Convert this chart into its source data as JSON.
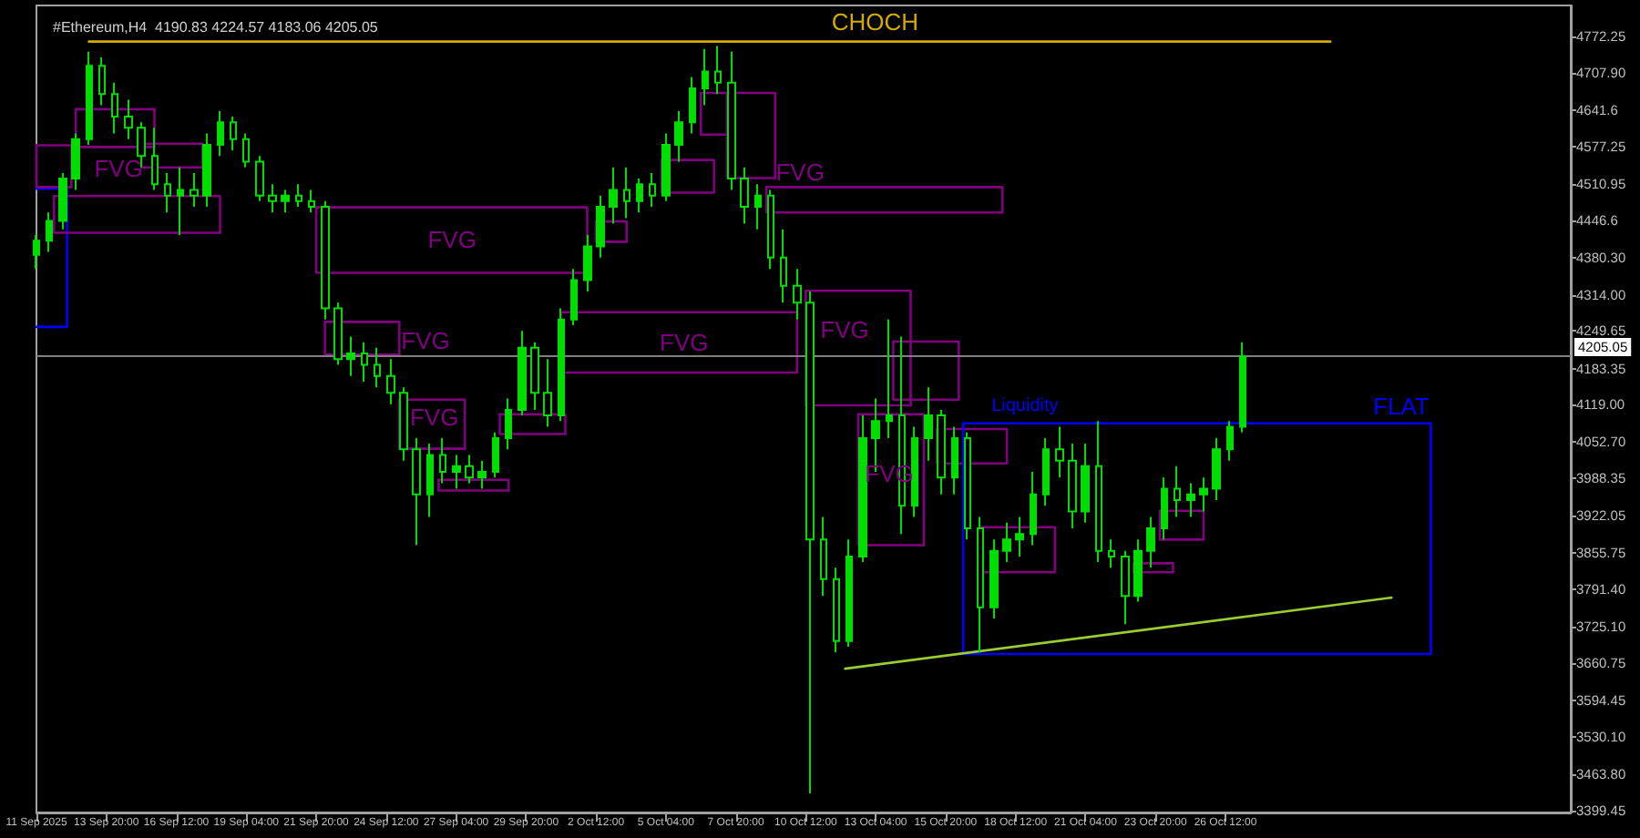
{
  "chart_data": {
    "type": "candlestick",
    "title": "#Ethereum,H4  4190.83 4224.57 4183.06 4205.05",
    "color": "#00dd00",
    "grid": false,
    "x": [
      "2025-09-11T04:00",
      "2025-09-11T16:00",
      "2025-09-12T04:00",
      "2025-09-12T16:00",
      "2025-09-13T04:00",
      "2025-09-13T16:00",
      "2025-09-14T04:00",
      "2025-09-14T16:00",
      "2025-09-15T04:00",
      "2025-09-15T16:00",
      "2025-09-16T04:00",
      "2025-09-16T16:00",
      "2025-09-17T04:00",
      "2025-09-17T16:00",
      "2025-09-18T04:00",
      "2025-09-18T16:00",
      "2025-09-19T04:00",
      "2025-09-19T16:00",
      "2025-09-20T04:00",
      "2025-09-20T16:00",
      "2025-09-21T04:00",
      "2025-09-21T16:00",
      "2025-09-22T04:00",
      "2025-09-22T16:00",
      "2025-09-23T04:00",
      "2025-09-23T16:00",
      "2025-09-24T04:00",
      "2025-09-24T16:00",
      "2025-09-25T04:00",
      "2025-09-25T16:00",
      "2025-09-26T04:00",
      "2025-09-26T16:00",
      "2025-09-27T04:00",
      "2025-09-27T16:00",
      "2025-09-28T04:00",
      "2025-09-28T16:00",
      "2025-09-29T04:00",
      "2025-09-29T16:00",
      "2025-09-30T04:00",
      "2025-09-30T16:00",
      "2025-10-01T04:00",
      "2025-10-01T16:00",
      "2025-10-02T04:00",
      "2025-10-02T16:00",
      "2025-10-03T04:00",
      "2025-10-03T16:00",
      "2025-10-04T04:00",
      "2025-10-04T16:00",
      "2025-10-05T04:00",
      "2025-10-05T16:00",
      "2025-10-06T04:00",
      "2025-10-06T16:00",
      "2025-10-07T04:00",
      "2025-10-07T16:00",
      "2025-10-08T04:00",
      "2025-10-08T16:00",
      "2025-10-09T04:00",
      "2025-10-09T16:00",
      "2025-10-10T04:00",
      "2025-10-10T16:00",
      "2025-10-11T04:00",
      "2025-10-11T16:00",
      "2025-10-12T04:00",
      "2025-10-12T16:00",
      "2025-10-13T04:00",
      "2025-10-13T16:00",
      "2025-10-14T04:00",
      "2025-10-14T16:00",
      "2025-10-15T04:00",
      "2025-10-15T16:00",
      "2025-10-16T04:00",
      "2025-10-16T16:00",
      "2025-10-17T04:00",
      "2025-10-17T16:00",
      "2025-10-18T04:00",
      "2025-10-18T16:00",
      "2025-10-19T04:00",
      "2025-10-19T16:00",
      "2025-10-20T04:00",
      "2025-10-20T16:00",
      "2025-10-21T04:00",
      "2025-10-21T16:00",
      "2025-10-22T04:00",
      "2025-10-22T16:00",
      "2025-10-23T04:00",
      "2025-10-23T16:00",
      "2025-10-24T04:00",
      "2025-10-24T16:00",
      "2025-10-25T04:00",
      "2025-10-25T16:00",
      "2025-10-26T04:00",
      "2025-10-26T16:00",
      "2025-10-27T04:00"
    ],
    "ohlc": [
      [
        4385,
        4420,
        4360,
        4410
      ],
      [
        4410,
        4460,
        4390,
        4445
      ],
      [
        4445,
        4530,
        4430,
        4520
      ],
      [
        4520,
        4600,
        4500,
        4590
      ],
      [
        4590,
        4745,
        4580,
        4720
      ],
      [
        4720,
        4735,
        4650,
        4670
      ],
      [
        4670,
        4690,
        4600,
        4630
      ],
      [
        4630,
        4660,
        4590,
        4610
      ],
      [
        4610,
        4620,
        4540,
        4560
      ],
      [
        4560,
        4610,
        4500,
        4510
      ],
      [
        4510,
        4530,
        4460,
        4490
      ],
      [
        4490,
        4540,
        4420,
        4500
      ],
      [
        4500,
        4530,
        4470,
        4490
      ],
      [
        4490,
        4600,
        4470,
        4580
      ],
      [
        4580,
        4640,
        4560,
        4620
      ],
      [
        4620,
        4630,
        4570,
        4590
      ],
      [
        4590,
        4600,
        4540,
        4550
      ],
      [
        4550,
        4560,
        4480,
        4490
      ],
      [
        4490,
        4510,
        4460,
        4480
      ],
      [
        4480,
        4500,
        4460,
        4490
      ],
      [
        4490,
        4510,
        4470,
        4480
      ],
      [
        4480,
        4500,
        4460,
        4470
      ],
      [
        4470,
        4480,
        4270,
        4290
      ],
      [
        4290,
        4300,
        4190,
        4200
      ],
      [
        4200,
        4240,
        4170,
        4210
      ],
      [
        4210,
        4230,
        4160,
        4190
      ],
      [
        4190,
        4220,
        4150,
        4170
      ],
      [
        4170,
        4200,
        4120,
        4140
      ],
      [
        4140,
        4150,
        4020,
        4040
      ],
      [
        4040,
        4060,
        3870,
        3960
      ],
      [
        3960,
        4050,
        3920,
        4030
      ],
      [
        4030,
        4060,
        3980,
        4000
      ],
      [
        4000,
        4030,
        3970,
        4010
      ],
      [
        4010,
        4030,
        3980,
        3990
      ],
      [
        3990,
        4020,
        3970,
        4000
      ],
      [
        4000,
        4070,
        3990,
        4060
      ],
      [
        4060,
        4130,
        4040,
        4110
      ],
      [
        4110,
        4250,
        4100,
        4220
      ],
      [
        4220,
        4230,
        4110,
        4140
      ],
      [
        4140,
        4200,
        4080,
        4100
      ],
      [
        4100,
        4290,
        4090,
        4270
      ],
      [
        4270,
        4360,
        4260,
        4340
      ],
      [
        4340,
        4420,
        4320,
        4400
      ],
      [
        4400,
        4490,
        4380,
        4470
      ],
      [
        4470,
        4540,
        4440,
        4500
      ],
      [
        4500,
        4540,
        4450,
        4480
      ],
      [
        4480,
        4520,
        4460,
        4510
      ],
      [
        4510,
        4530,
        4470,
        4490
      ],
      [
        4490,
        4600,
        4480,
        4580
      ],
      [
        4580,
        4640,
        4550,
        4620
      ],
      [
        4620,
        4700,
        4600,
        4680
      ],
      [
        4680,
        4750,
        4650,
        4710
      ],
      [
        4710,
        4755,
        4670,
        4690
      ],
      [
        4690,
        4745,
        4500,
        4520
      ],
      [
        4520,
        4540,
        4440,
        4470
      ],
      [
        4470,
        4510,
        4430,
        4490
      ],
      [
        4490,
        4500,
        4360,
        4380
      ],
      [
        4380,
        4430,
        4300,
        4330
      ],
      [
        4330,
        4360,
        4270,
        4300
      ],
      [
        4300,
        4320,
        3430,
        3880
      ],
      [
        3880,
        3920,
        3780,
        3810
      ],
      [
        3810,
        3830,
        3680,
        3700
      ],
      [
        3700,
        3880,
        3690,
        3850
      ],
      [
        3850,
        4100,
        3840,
        4060
      ],
      [
        4060,
        4130,
        4000,
        4090
      ],
      [
        4090,
        4270,
        4060,
        4100
      ],
      [
        4100,
        4240,
        3890,
        3940
      ],
      [
        3940,
        4080,
        3920,
        4060
      ],
      [
        4060,
        4150,
        4020,
        4100
      ],
      [
        4100,
        4110,
        3960,
        3990
      ],
      [
        3990,
        4080,
        3960,
        4060
      ],
      [
        4060,
        4070,
        3880,
        3900
      ],
      [
        3900,
        3920,
        3680,
        3760
      ],
      [
        3760,
        3880,
        3740,
        3860
      ],
      [
        3860,
        3910,
        3840,
        3880
      ],
      [
        3880,
        3920,
        3850,
        3890
      ],
      [
        3890,
        4000,
        3870,
        3960
      ],
      [
        3960,
        4060,
        3940,
        4040
      ],
      [
        4040,
        4080,
        3990,
        4020
      ],
      [
        4020,
        4050,
        3900,
        3930
      ],
      [
        3930,
        4050,
        3910,
        4010
      ],
      [
        4010,
        4090,
        3840,
        3860
      ],
      [
        3860,
        3880,
        3830,
        3850
      ],
      [
        3850,
        3860,
        3730,
        3780
      ],
      [
        3780,
        3880,
        3770,
        3860
      ],
      [
        3860,
        3920,
        3830,
        3900
      ],
      [
        3900,
        3990,
        3880,
        3970
      ],
      [
        3970,
        4010,
        3920,
        3950
      ],
      [
        3950,
        3980,
        3920,
        3960
      ],
      [
        3960,
        3990,
        3930,
        3970
      ],
      [
        3970,
        4060,
        3950,
        4040
      ],
      [
        4040,
        4090,
        4020,
        4080
      ],
      [
        4080,
        4230,
        4070,
        4205
      ]
    ],
    "xlim": [
      "2025-09-11T04:00",
      "2025-11-08T16:00"
    ],
    "xticks": [
      {
        "value": "2025-09-11T04:00",
        "label": "11 Sep 2025"
      },
      {
        "value": "2025-09-13T20:00",
        "label": "13 Sep 20:00"
      },
      {
        "value": "2025-09-16T12:00",
        "label": "16 Sep 12:00"
      },
      {
        "value": "2025-09-19T04:00",
        "label": "19 Sep 04:00"
      },
      {
        "value": "2025-09-21T20:00",
        "label": "21 Sep 20:00"
      },
      {
        "value": "2025-09-24T12:00",
        "label": "24 Sep 12:00"
      },
      {
        "value": "2025-09-27T04:00",
        "label": "27 Sep 04:00"
      },
      {
        "value": "2025-09-29T20:00",
        "label": "29 Sep 20:00"
      },
      {
        "value": "2025-10-02T12:00",
        "label": "2 Oct 12:00"
      },
      {
        "value": "2025-10-05T04:00",
        "label": "5 Oct 04:00"
      },
      {
        "value": "2025-10-07T20:00",
        "label": "7 Oct 20:00"
      },
      {
        "value": "2025-10-10T12:00",
        "label": "10 Oct 12:00"
      },
      {
        "value": "2025-10-13T04:00",
        "label": "13 Oct 04:00"
      },
      {
        "value": "2025-10-15T20:00",
        "label": "15 Oct 20:00"
      },
      {
        "value": "2025-10-18T12:00",
        "label": "18 Oct 12:00"
      },
      {
        "value": "2025-10-21T04:00",
        "label": "21 Oct 04:00"
      },
      {
        "value": "2025-10-23T20:00",
        "label": "23 Oct 20:00"
      },
      {
        "value": "2025-10-26T12:00",
        "label": "26 Oct 12:00"
      }
    ],
    "ylim": [
      3396,
      4827
    ],
    "yticks": [
      4772.25,
      {
        "value": 4707.9,
        "label": "4707.90"
      },
      4641.6,
      4577.25,
      4510.95,
      4446.6,
      {
        "value": 4380.3,
        "label": "4380.30"
      },
      {
        "value": 4314,
        "label": "4314.00"
      },
      4249.65,
      4183.35,
      {
        "value": 4119,
        "label": "4119.00"
      },
      {
        "value": 4052.7,
        "label": "4052.70"
      },
      3988.35,
      3922.05,
      3855.75,
      {
        "value": 3791.4,
        "label": "3791.40"
      },
      {
        "value": 3725.1,
        "label": "3725.10"
      },
      3660.75,
      3594.45,
      {
        "value": 3530.1,
        "label": "3530.10"
      },
      {
        "value": 3463.8,
        "label": "3463.80"
      },
      3399.45
    ],
    "ref_lines": [
      {
        "axis": "y",
        "value": 4205.05,
        "label": "4205.05",
        "color": "#808080"
      }
    ],
    "series": [
      {
        "type": "line",
        "color": "#0000ff",
        "x": [
          "2025-09-11T04:00",
          "2025-09-12T08:00",
          "2025-09-12T08:00",
          "2025-09-11T04:00"
        ],
        "values": [
          4502,
          4502,
          4257,
          4257
        ]
      },
      {
        "type": "line",
        "color": "#800080",
        "x": [
          "2025-09-11T04:00",
          "2025-09-12T12:00",
          "2025-09-12T12:00"
        ],
        "values": [
          4579,
          4579,
          4505
        ]
      },
      {
        "type": "line",
        "color": "#800080",
        "x": [
          "2025-09-12T12:00",
          "2025-09-11T04:00",
          "2025-09-11T04:00"
        ],
        "values": [
          4505,
          4505,
          4579
        ]
      },
      {
        "type": "line",
        "color": "#800080",
        "x": [
          "2025-09-12T16:00",
          "2025-09-15T16:00",
          "2025-09-15T16:00"
        ],
        "values": [
          4643,
          4643,
          4576
        ]
      },
      {
        "type": "line",
        "color": "#800080",
        "x": [
          "2025-09-15T16:00",
          "2025-09-12T16:00",
          "2025-09-12T16:00"
        ],
        "values": [
          4576,
          4576,
          4643
        ]
      },
      {
        "type": "line",
        "color": "#800080",
        "x": [
          "2025-09-15T04:00",
          "2025-09-17T12:00",
          "2025-09-17T12:00"
        ],
        "values": [
          4582,
          4582,
          4540
        ]
      },
      {
        "type": "line",
        "color": "#800080",
        "x": [
          "2025-09-17T12:00",
          "2025-09-15T04:00",
          "2025-09-15T04:00"
        ],
        "values": [
          4540,
          4540,
          4582
        ]
      },
      {
        "type": "line",
        "color": "#800080",
        "x": [
          "2025-09-11T20:00",
          "2025-09-18T04:00",
          "2025-09-18T04:00"
        ],
        "values": [
          4489,
          4489,
          4424
        ]
      },
      {
        "type": "line",
        "color": "#800080",
        "x": [
          "2025-09-18T04:00",
          "2025-09-11T20:00",
          "2025-09-11T20:00"
        ],
        "values": [
          4424,
          4424,
          4489
        ]
      },
      {
        "type": "line",
        "color": "#800080",
        "x": [
          "2025-09-21T20:00",
          "2025-10-02T04:00",
          "2025-10-02T04:00"
        ],
        "values": [
          4469,
          4469,
          4353
        ]
      },
      {
        "type": "line",
        "color": "#800080",
        "x": [
          "2025-10-02T04:00",
          "2025-09-21T20:00",
          "2025-09-21T20:00"
        ],
        "values": [
          4353,
          4353,
          4469
        ]
      },
      {
        "type": "line",
        "color": "#800080",
        "x": [
          "2025-09-22T04:00",
          "2025-09-25T00:00",
          "2025-09-25T00:00"
        ],
        "values": [
          4266,
          4266,
          4208
        ]
      },
      {
        "type": "line",
        "color": "#800080",
        "x": [
          "2025-09-25T00:00",
          "2025-09-22T04:00",
          "2025-09-22T04:00"
        ],
        "values": [
          4208,
          4208,
          4266
        ]
      },
      {
        "type": "line",
        "color": "#800080",
        "x": [
          "2025-10-01T04:00",
          "2025-10-10T04:00",
          "2025-10-10T04:00"
        ],
        "values": [
          4283,
          4283,
          4176
        ]
      },
      {
        "type": "line",
        "color": "#800080",
        "x": [
          "2025-10-10T04:00",
          "2025-10-01T04:00",
          "2025-10-01T04:00"
        ],
        "values": [
          4176,
          4176,
          4283
        ]
      },
      {
        "type": "line",
        "color": "#800080",
        "x": [
          "2025-09-25T00:00",
          "2025-09-27T12:00",
          "2025-09-27T12:00"
        ],
        "values": [
          4128,
          4128,
          4041
        ]
      },
      {
        "type": "line",
        "color": "#800080",
        "x": [
          "2025-09-27T12:00",
          "2025-09-25T00:00",
          "2025-09-25T00:00"
        ],
        "values": [
          4041,
          4041,
          4128
        ]
      },
      {
        "type": "line",
        "color": "#800080",
        "x": [
          "2025-09-26T12:00",
          "2025-09-29T04:00",
          "2025-09-29T04:00"
        ],
        "values": [
          3986,
          3986,
          3967
        ]
      },
      {
        "type": "line",
        "color": "#800080",
        "x": [
          "2025-09-29T04:00",
          "2025-09-26T12:00",
          "2025-09-26T12:00"
        ],
        "values": [
          3967,
          3967,
          3986
        ]
      },
      {
        "type": "line",
        "color": "#800080",
        "x": [
          "2025-09-28T20:00",
          "2025-10-01T08:00",
          "2025-10-01T08:00"
        ],
        "values": [
          4102,
          4102,
          4067
        ]
      },
      {
        "type": "line",
        "color": "#800080",
        "x": [
          "2025-10-01T08:00",
          "2025-09-28T20:00",
          "2025-09-28T20:00"
        ],
        "values": [
          4067,
          4067,
          4102
        ]
      },
      {
        "type": "line",
        "color": "#800080",
        "x": [
          "2025-10-02T12:00",
          "2025-10-03T16:00",
          "2025-10-03T16:00"
        ],
        "values": [
          4444,
          4444,
          4408
        ]
      },
      {
        "type": "line",
        "color": "#800080",
        "x": [
          "2025-10-03T16:00",
          "2025-10-02T12:00",
          "2025-10-02T12:00"
        ],
        "values": [
          4408,
          4408,
          4444
        ]
      },
      {
        "type": "line",
        "color": "#800080",
        "x": [
          "2025-10-05T00:00",
          "2025-10-07T00:00",
          "2025-10-07T00:00"
        ],
        "values": [
          4553,
          4553,
          4495
        ]
      },
      {
        "type": "line",
        "color": "#800080",
        "x": [
          "2025-10-07T00:00",
          "2025-10-05T00:00",
          "2025-10-05T00:00"
        ],
        "values": [
          4495,
          4495,
          4553
        ]
      },
      {
        "type": "line",
        "color": "#800080",
        "x": [
          "2025-10-06T12:00",
          "2025-10-07T12:00",
          "2025-10-07T12:00"
        ],
        "values": [
          4672,
          4672,
          4598
        ]
      },
      {
        "type": "line",
        "color": "#800080",
        "x": [
          "2025-10-07T12:00",
          "2025-10-06T12:00",
          "2025-10-06T12:00"
        ],
        "values": [
          4598,
          4598,
          4672
        ]
      },
      {
        "type": "line",
        "color": "#800080",
        "x": [
          "2025-10-07T12:00",
          "2025-10-09T08:00",
          "2025-10-09T08:00"
        ],
        "values": [
          4672,
          4672,
          4521
        ]
      },
      {
        "type": "line",
        "color": "#800080",
        "x": [
          "2025-10-09T08:00",
          "2025-10-07T12:00",
          "2025-10-07T12:00"
        ],
        "values": [
          4521,
          4521,
          4672
        ]
      },
      {
        "type": "line",
        "color": "#800080",
        "x": [
          "2025-10-09T00:00",
          "2025-10-18T00:00",
          "2025-10-18T00:00"
        ],
        "values": [
          4505,
          4505,
          4460
        ]
      },
      {
        "type": "line",
        "color": "#800080",
        "x": [
          "2025-10-18T00:00",
          "2025-10-09T00:00",
          "2025-10-09T00:00"
        ],
        "values": [
          4460,
          4460,
          4505
        ]
      },
      {
        "type": "line",
        "color": "#800080",
        "x": [
          "2025-10-10T12:00",
          "2025-10-14T12:00",
          "2025-10-14T12:00"
        ],
        "values": [
          4321,
          4321,
          4118
        ]
      },
      {
        "type": "line",
        "color": "#800080",
        "x": [
          "2025-10-14T12:00",
          "2025-10-10T12:00",
          "2025-10-10T12:00"
        ],
        "values": [
          4118,
          4118,
          4321
        ]
      },
      {
        "type": "line",
        "color": "#800080",
        "x": [
          "2025-10-12T12:00",
          "2025-10-15T00:00",
          "2025-10-15T00:00"
        ],
        "values": [
          4102,
          4102,
          3870
        ]
      },
      {
        "type": "line",
        "color": "#800080",
        "x": [
          "2025-10-15T00:00",
          "2025-10-12T12:00",
          "2025-10-12T12:00"
        ],
        "values": [
          3870,
          3870,
          4102
        ]
      },
      {
        "type": "line",
        "color": "#800080",
        "x": [
          "2025-10-13T20:00",
          "2025-10-16T08:00",
          "2025-10-16T08:00"
        ],
        "values": [
          4231,
          4231,
          4128
        ]
      },
      {
        "type": "line",
        "color": "#800080",
        "x": [
          "2025-10-16T08:00",
          "2025-10-13T20:00",
          "2025-10-13T20:00"
        ],
        "values": [
          4128,
          4128,
          4231
        ]
      },
      {
        "type": "line",
        "color": "#800080",
        "x": [
          "2025-10-15T12:00",
          "2025-10-18T04:00",
          "2025-10-18T04:00"
        ],
        "values": [
          4076,
          4076,
          4015
        ]
      },
      {
        "type": "line",
        "color": "#800080",
        "x": [
          "2025-10-18T04:00",
          "2025-10-15T12:00",
          "2025-10-15T12:00"
        ],
        "values": [
          4015,
          4015,
          4076
        ]
      },
      {
        "type": "line",
        "color": "#800080",
        "x": [
          "2025-10-17T04:00",
          "2025-10-20T00:00",
          "2025-10-20T00:00"
        ],
        "values": [
          3902,
          3902,
          3822
        ]
      },
      {
        "type": "line",
        "color": "#800080",
        "x": [
          "2025-10-20T00:00",
          "2025-10-17T04:00",
          "2025-10-17T04:00"
        ],
        "values": [
          3822,
          3822,
          3902
        ]
      },
      {
        "type": "line",
        "color": "#800080",
        "x": [
          "2025-10-23T00:00",
          "2025-10-24T12:00",
          "2025-10-24T12:00"
        ],
        "values": [
          3838,
          3838,
          3822
        ]
      },
      {
        "type": "line",
        "color": "#800080",
        "x": [
          "2025-10-24T12:00",
          "2025-10-23T00:00",
          "2025-10-23T00:00"
        ],
        "values": [
          3822,
          3822,
          3838
        ]
      },
      {
        "type": "line",
        "color": "#800080",
        "x": [
          "2025-10-24T00:00",
          "2025-10-25T16:00",
          "2025-10-25T16:00"
        ],
        "values": [
          3931,
          3931,
          3880
        ]
      },
      {
        "type": "line",
        "color": "#800080",
        "x": [
          "2025-10-25T16:00",
          "2025-10-24T00:00",
          "2025-10-24T00:00"
        ],
        "values": [
          3880,
          3880,
          3931
        ]
      },
      {
        "type": "line",
        "color": "#0000ff",
        "x": [
          "2025-10-16T12:00",
          "2025-11-03T08:00",
          "2025-11-03T08:00"
        ],
        "values": [
          4086,
          4086,
          3677
        ]
      },
      {
        "type": "line",
        "color": "#0000ff",
        "x": [
          "2025-11-03T08:00",
          "2025-10-16T12:00",
          "2025-10-16T12:00"
        ],
        "values": [
          3677,
          3677,
          4086
        ]
      },
      {
        "type": "line",
        "color": "#d4aa00",
        "x": [
          "2025-09-13T04:00",
          "2025-10-30T12:00"
        ],
        "values": [
          4763,
          4763
        ]
      },
      {
        "type": "line",
        "color": "#9acd32",
        "x": [
          "2025-10-12T00:00",
          "2025-11-01T20:00"
        ],
        "values": [
          3651,
          3777
        ]
      }
    ],
    "annotations": [
      "CHOCH",
      "FVG",
      "FVG",
      "FVG",
      "FVG",
      "FVG",
      "FVG",
      "FVG",
      "FVG",
      "Liquidity",
      "FLAT"
    ]
  }
}
